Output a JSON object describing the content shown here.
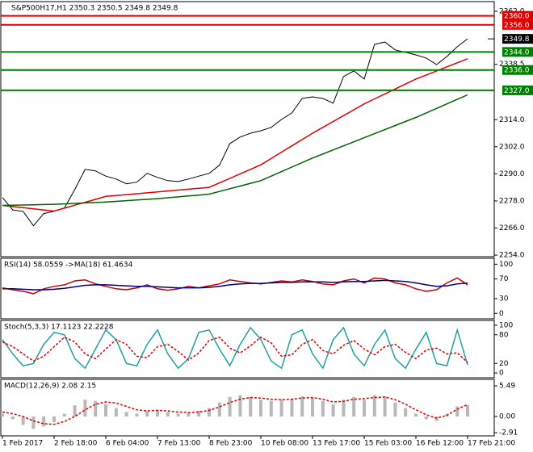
{
  "chart_data": [
    {
      "type": "line",
      "title": "S&P500H17,H1  2350.3 2350.5 2349.8 2349.8",
      "categories": [
        "1 Feb 2017",
        null,
        null,
        null,
        null,
        "2 Feb 18:00",
        null,
        null,
        null,
        null,
        "6 Feb 04:00",
        null,
        null,
        null,
        null,
        "7 Feb 13:00",
        null,
        null,
        null,
        null,
        "8 Feb 23:00",
        null,
        null,
        null,
        null,
        "10 Feb 08:00",
        null,
        null,
        null,
        null,
        "13 Feb 17:00",
        null,
        null,
        null,
        null,
        "15 Feb 03:00",
        null,
        null,
        null,
        null,
        "16 Feb 12:00",
        null,
        null,
        null,
        null,
        "17 Feb 21:00"
      ],
      "ylim": [
        2253.3,
        2366.3
      ],
      "yticks": [
        {
          "value": 2362,
          "label": "2362.0"
        },
        {
          "value": 2338.5,
          "label": "2338.5"
        },
        {
          "value": 2314,
          "label": "2314.0"
        },
        {
          "value": 2302,
          "label": "2302.0"
        },
        {
          "value": 2290,
          "label": "2290.0"
        },
        {
          "value": 2278,
          "label": "2278.0"
        },
        {
          "value": 2266,
          "label": "2266.0"
        },
        {
          "value": 2254,
          "label": "2254.0"
        }
      ],
      "series": [
        {
          "color": "#000000",
          "values": [
            2279.5,
            2274,
            2273.4,
            2267,
            2272.4,
            2273.4,
            2274.9,
            2283,
            2292,
            2291.3,
            2289,
            2287.7,
            2285.6,
            2286.3,
            2290.2,
            2288.4,
            2287,
            2286.6,
            2287.7,
            2289,
            2290.2,
            2293.8,
            2303.4,
            2306.3,
            2308,
            2309.1,
            2310.6,
            2314.1,
            2317,
            2323.4,
            2324.1,
            2323.4,
            2321.3,
            2333.1,
            2335.6,
            2332,
            2347.4,
            2348.4,
            2344.9,
            2343.8,
            2342.7,
            2341.3,
            2338.4,
            2342,
            2346.3,
            2349.8
          ]
        },
        {
          "color": "#e00000",
          "values": [
            2276,
            2275.5,
            2275,
            2274.5,
            2274,
            2273.5,
            2274.8,
            2276.1,
            2277.4,
            2278.7,
            2280,
            2280.4,
            2280.8,
            2281.2,
            2281.6,
            2282,
            2282.4,
            2282.8,
            2283.2,
            2283.6,
            2284,
            2286,
            2288,
            2290,
            2292,
            2294,
            2296.8,
            2299.6,
            2302.4,
            2305.2,
            2308,
            2310.6,
            2313.2,
            2315.8,
            2318.4,
            2321,
            2323.2,
            2325.4,
            2327.6,
            2329.8,
            2332,
            2333.8,
            2335.6,
            2337.4,
            2339.2,
            2341
          ]
        },
        {
          "color": "#006400",
          "values": [
            2276,
            2276.1,
            2276.2,
            2276.3,
            2276.4,
            2276.5,
            2276.7,
            2276.9,
            2277.1,
            2277.3,
            2277.5,
            2277.8,
            2278.1,
            2278.4,
            2278.7,
            2279,
            2279.4,
            2279.8,
            2280.2,
            2280.6,
            2281,
            2282.2,
            2283.4,
            2284.6,
            2285.8,
            2287,
            2289,
            2291,
            2293,
            2295,
            2297,
            2298.8,
            2300.6,
            2302.4,
            2304.2,
            2306,
            2307.8,
            2309.6,
            2311.4,
            2313.2,
            2315,
            2317,
            2319,
            2321,
            2323,
            2325
          ]
        }
      ],
      "levels": [
        {
          "value": 2360,
          "label": "2360.0",
          "color": "#e00000"
        },
        {
          "value": 2356,
          "label": "2356.0",
          "color": "#e00000"
        },
        {
          "value": 2344,
          "label": "2344.0",
          "color": "#008000"
        },
        {
          "value": 2336,
          "label": "2336.0",
          "color": "#008000"
        },
        {
          "value": 2327,
          "label": "2327.0",
          "color": "#008000"
        }
      ],
      "last_price": 2349.8
    },
    {
      "type": "line",
      "title": "RSI(14) 58.0559 ->MA(18) 61.4634",
      "ylim": [
        -11,
        112
      ],
      "yticks": [
        100,
        70,
        30,
        0
      ],
      "series": [
        {
          "color": "#d00000",
          "values": [
            52,
            48,
            45,
            40,
            50,
            55,
            58,
            66,
            68,
            60,
            55,
            50,
            48,
            52,
            58,
            50,
            47,
            50,
            55,
            52,
            56,
            60,
            68,
            65,
            62,
            60,
            63,
            66,
            64,
            68,
            65,
            60,
            58,
            66,
            70,
            62,
            72,
            70,
            62,
            58,
            50,
            45,
            48,
            62,
            72,
            58
          ]
        },
        {
          "color": "#000080",
          "values": [
            50,
            50,
            49,
            48,
            48,
            49,
            51,
            54,
            57,
            58,
            58,
            57,
            56,
            55,
            55,
            54,
            53,
            52,
            52,
            52,
            53,
            55,
            58,
            60,
            61,
            61,
            62,
            63,
            63,
            64,
            64,
            64,
            63,
            64,
            65,
            65,
            66,
            67,
            66,
            65,
            62,
            58,
            55,
            56,
            60,
            61.5
          ]
        }
      ]
    },
    {
      "type": "line",
      "title": "Stoch(5,3,3) 17.1123 22.2228",
      "ylim": [
        -10,
        110
      ],
      "yticks": [
        100,
        80,
        20,
        0
      ],
      "series": [
        {
          "color": "#20a0a0",
          "values": [
            70,
            40,
            15,
            20,
            60,
            85,
            80,
            30,
            10,
            50,
            90,
            70,
            20,
            15,
            60,
            90,
            40,
            10,
            30,
            85,
            90,
            50,
            15,
            60,
            95,
            70,
            25,
            10,
            80,
            90,
            40,
            10,
            70,
            95,
            40,
            15,
            60,
            90,
            30,
            10,
            50,
            85,
            20,
            15,
            90,
            17
          ]
        },
        {
          "color": "#e00000",
          "dash": true,
          "values": [
            65,
            55,
            40,
            25,
            35,
            55,
            75,
            65,
            40,
            30,
            50,
            70,
            60,
            35,
            32,
            55,
            60,
            45,
            27,
            42,
            68,
            75,
            52,
            42,
            57,
            75,
            63,
            35,
            38,
            60,
            70,
            47,
            40,
            58,
            68,
            50,
            38,
            55,
            60,
            43,
            30,
            48,
            52,
            40,
            42,
            22
          ]
        }
      ]
    },
    {
      "type": "combo",
      "title": "MACD(12,26,9) 2.08 2.15",
      "ylim": [
        -3.47,
        6.65
      ],
      "yticks": [
        5.49,
        {
          "value": 0,
          "label": "0.00"
        },
        -2.91
      ],
      "series": [
        {
          "type": "bar",
          "color": "#b8b8b8",
          "values": [
            0.5,
            -0.5,
            -1.5,
            -2.2,
            -1.8,
            -1,
            0.5,
            2,
            3,
            2.8,
            2.2,
            1.5,
            0.8,
            0.5,
            1,
            1.2,
            0.8,
            0.5,
            0.6,
            1,
            1.5,
            2.5,
            3.5,
            3.8,
            3.5,
            3,
            2.8,
            3,
            3.2,
            3.6,
            3.4,
            2.8,
            2.2,
            3,
            3.5,
            3,
            3.8,
            3.6,
            2.5,
            1.5,
            0.5,
            -0.5,
            -0.8,
            0.5,
            1.8,
            2.08
          ]
        },
        {
          "type": "line",
          "color": "#e00000",
          "dash": true,
          "values": [
            0.8,
            0.5,
            0,
            -0.8,
            -1.3,
            -1.4,
            -0.9,
            0,
            1.2,
            2.2,
            2.6,
            2.4,
            1.8,
            1.2,
            1,
            1.1,
            1,
            0.8,
            0.7,
            0.8,
            1.1,
            1.7,
            2.5,
            3.1,
            3.4,
            3.3,
            3.1,
            3,
            3.1,
            3.3,
            3.4,
            3.1,
            2.6,
            2.7,
            3.1,
            3.2,
            3.4,
            3.5,
            3,
            2.2,
            1.2,
            0.3,
            -0.3,
            0.2,
            1.3,
            2.15
          ]
        }
      ]
    }
  ]
}
